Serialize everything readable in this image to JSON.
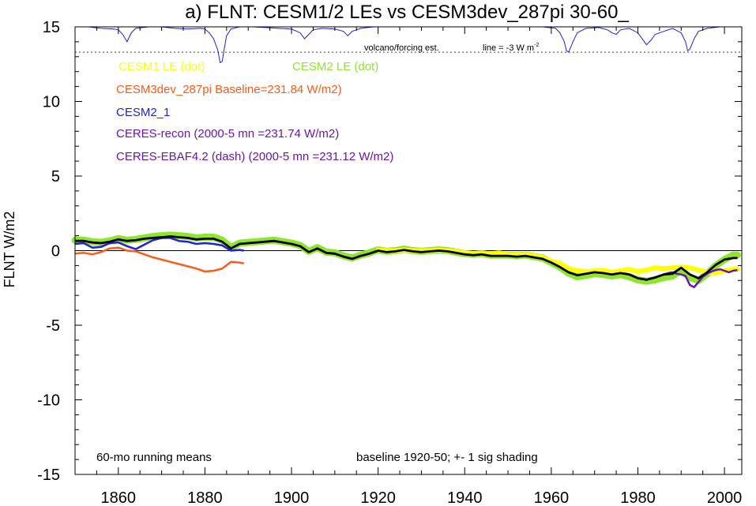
{
  "chart_data": {
    "type": "line",
    "title": "a) FLNT: CESM1/2 LEs vs CESM3dev_287pi 30-60_",
    "ylabel": "FLNT W/m2",
    "xlabel": "",
    "xlim": [
      1850,
      2004
    ],
    "ylim": [
      -15,
      15
    ],
    "x_ticks": [
      1860,
      1880,
      1900,
      1920,
      1940,
      1960,
      1980,
      2000
    ],
    "y_ticks": [
      -15,
      -10,
      -5,
      0,
      5,
      10,
      15
    ],
    "grid": false,
    "legend_placement": "top-left",
    "legend_entries": [
      {
        "label": "CESM1 LE (dot)",
        "color": "#ffff00"
      },
      {
        "label": "CESM2 LE (dot)",
        "color": "#8ee62c"
      },
      {
        "label": "CESM3dev_287pi Baseline=231.84 W/m2)",
        "color": "#ff5a14"
      },
      {
        "label": "CESM2_1",
        "color": "#1e1ee6"
      },
      {
        "label": "CERES-recon (2000-5 mn =231.74 W/m2)",
        "color": "#6a14b4"
      },
      {
        "label": "CERES-EBAF4.2 (dash) (2000-5 mn =231.12 W/m2)",
        "color": "#6a14b4"
      }
    ],
    "annotations": {
      "volcano": "volcano/forcing est.",
      "line": "line = -3 W m",
      "line_sup": "-2",
      "running": "60-mo running means",
      "baseline": "baseline 1920-50; +- 1 sig shading"
    },
    "volcano_reference_y": 13.3,
    "zero_line_y": 0,
    "series": [
      {
        "name": "CESM2 LE",
        "color": "#8ee62c",
        "x": [
          1850,
          1852,
          1854,
          1856,
          1858,
          1860,
          1862,
          1864,
          1866,
          1868,
          1870,
          1872,
          1874,
          1876,
          1878,
          1880,
          1882,
          1884,
          1886,
          1888,
          1890,
          1892,
          1894,
          1896,
          1898,
          1900,
          1902,
          1904,
          1906,
          1908,
          1910,
          1912,
          1914,
          1916,
          1918,
          1920,
          1922,
          1924,
          1926,
          1928,
          1930,
          1932,
          1934,
          1936,
          1938,
          1940,
          1942,
          1944,
          1946,
          1948,
          1950,
          1952,
          1954,
          1956,
          1958,
          1960,
          1962,
          1964,
          1966,
          1968,
          1970,
          1972,
          1974,
          1976,
          1978,
          1980,
          1982,
          1984,
          1986,
          1988,
          1990,
          1992,
          1994,
          1996,
          1998,
          2000,
          2002,
          2003
        ],
        "y": [
          0.7,
          0.7,
          0.6,
          0.55,
          0.65,
          0.8,
          0.7,
          0.75,
          0.85,
          0.95,
          1.0,
          1.05,
          1.0,
          0.95,
          0.85,
          0.9,
          0.9,
          0.7,
          0.2,
          0.5,
          0.55,
          0.6,
          0.65,
          0.7,
          0.6,
          0.5,
          0.35,
          -0.05,
          0.2,
          -0.1,
          -0.15,
          -0.35,
          -0.5,
          -0.3,
          -0.15,
          0.05,
          -0.05,
          0.0,
          0.1,
          0.0,
          -0.05,
          0.0,
          0.05,
          0.0,
          -0.1,
          -0.2,
          -0.25,
          -0.2,
          -0.3,
          -0.3,
          -0.3,
          -0.35,
          -0.3,
          -0.4,
          -0.5,
          -0.8,
          -1.1,
          -1.5,
          -1.75,
          -1.65,
          -1.55,
          -1.6,
          -1.7,
          -1.6,
          -1.75,
          -1.95,
          -2.05,
          -1.95,
          -1.8,
          -1.7,
          -1.3,
          -1.8,
          -2.0,
          -1.55,
          -1.0,
          -0.6,
          -0.3,
          -0.3
        ]
      },
      {
        "name": "CESM1 LE",
        "color": "#ffff00",
        "x": [
          1920,
          1922,
          1924,
          1926,
          1928,
          1930,
          1932,
          1934,
          1936,
          1938,
          1940,
          1942,
          1944,
          1946,
          1948,
          1950,
          1952,
          1954,
          1956,
          1958,
          1960,
          1962,
          1964,
          1966,
          1968,
          1970,
          1972,
          1974,
          1976,
          1978,
          1980,
          1982,
          1984,
          1986,
          1988,
          1990,
          1992,
          1994,
          1996,
          1998,
          2000,
          2002,
          2003
        ],
        "y": [
          0.05,
          0.0,
          0.0,
          0.05,
          0.0,
          0.0,
          0.0,
          0.05,
          0.0,
          -0.05,
          -0.15,
          -0.2,
          -0.2,
          -0.2,
          -0.15,
          -0.25,
          -0.3,
          -0.25,
          -0.35,
          -0.45,
          -0.7,
          -0.85,
          -1.2,
          -1.35,
          -1.4,
          -1.35,
          -1.3,
          -1.45,
          -1.35,
          -1.25,
          -1.4,
          -1.3,
          -1.15,
          -1.2,
          -1.15,
          -1.1,
          -1.15,
          -1.3,
          -1.45,
          -1.5,
          -1.35,
          -1.25,
          -1.25
        ]
      },
      {
        "name": "CESM3dev_287pi",
        "color": "#ff5a14",
        "x": [
          1850,
          1852,
          1854,
          1856,
          1858,
          1860,
          1862,
          1864,
          1866,
          1868,
          1870,
          1872,
          1874,
          1876,
          1878,
          1880,
          1882,
          1884,
          1886,
          1888,
          1889
        ],
        "y": [
          -0.2,
          -0.15,
          -0.25,
          -0.1,
          0.15,
          0.2,
          0.0,
          -0.05,
          -0.25,
          -0.45,
          -0.6,
          -0.75,
          -0.9,
          -1.05,
          -1.2,
          -1.4,
          -1.35,
          -1.2,
          -0.75,
          -0.8,
          -0.85
        ]
      },
      {
        "name": "CESM2_1",
        "color": "#1e1ee6",
        "x": [
          1850,
          1852,
          1854,
          1856,
          1858,
          1860,
          1862,
          1864,
          1866,
          1868,
          1870,
          1872,
          1874,
          1876,
          1878,
          1880,
          1882,
          1884,
          1886,
          1888,
          1889
        ],
        "y": [
          0.45,
          0.5,
          0.2,
          0.25,
          0.5,
          0.55,
          0.3,
          0.1,
          0.4,
          0.7,
          0.85,
          0.85,
          0.65,
          0.6,
          0.45,
          0.5,
          0.45,
          0.35,
          0.0,
          0.05,
          0.0
        ]
      },
      {
        "name": "CERES-recon",
        "color": "#6a14b4",
        "x": [
          1985,
          1986,
          1987,
          1988,
          1989,
          1990,
          1991,
          1992,
          1993,
          1994,
          1995,
          1996,
          1997,
          1998,
          1999,
          2000,
          2001,
          2002,
          2003
        ],
        "y": [
          -1.7,
          -1.6,
          -1.5,
          -1.45,
          -1.55,
          -1.6,
          -1.7,
          -2.3,
          -2.45,
          -2.1,
          -1.75,
          -1.55,
          -1.4,
          -1.3,
          -1.25,
          -1.35,
          -1.45,
          -1.35,
          -1.3
        ]
      },
      {
        "name": "CESM mean",
        "color": "#000000",
        "x": [
          1850,
          1852,
          1854,
          1856,
          1858,
          1860,
          1862,
          1864,
          1866,
          1868,
          1870,
          1872,
          1874,
          1876,
          1878,
          1880,
          1882,
          1884,
          1886,
          1888,
          1890,
          1892,
          1894,
          1896,
          1898,
          1900,
          1902,
          1904,
          1906,
          1908,
          1910,
          1912,
          1914,
          1916,
          1918,
          1920,
          1922,
          1924,
          1926,
          1928,
          1930,
          1932,
          1934,
          1936,
          1938,
          1940,
          1942,
          1944,
          1946,
          1948,
          1950,
          1952,
          1954,
          1956,
          1958,
          1960,
          1962,
          1964,
          1966,
          1968,
          1970,
          1972,
          1974,
          1976,
          1978,
          1980,
          1982,
          1984,
          1986,
          1988,
          1990,
          1992,
          1994,
          1996,
          1998,
          2000,
          2002,
          2003
        ],
        "y": [
          0.65,
          0.65,
          0.55,
          0.5,
          0.6,
          0.75,
          0.65,
          0.7,
          0.8,
          0.85,
          0.9,
          0.95,
          0.9,
          0.85,
          0.75,
          0.8,
          0.8,
          0.6,
          0.15,
          0.45,
          0.5,
          0.55,
          0.6,
          0.65,
          0.55,
          0.45,
          0.3,
          -0.1,
          0.15,
          -0.15,
          -0.2,
          -0.4,
          -0.55,
          -0.35,
          -0.2,
          0.0,
          -0.1,
          -0.05,
          0.05,
          -0.05,
          -0.1,
          -0.05,
          0.0,
          -0.05,
          -0.15,
          -0.25,
          -0.3,
          -0.25,
          -0.35,
          -0.35,
          -0.35,
          -0.4,
          -0.35,
          -0.45,
          -0.55,
          -0.8,
          -1.1,
          -1.45,
          -1.65,
          -1.55,
          -1.45,
          -1.5,
          -1.6,
          -1.5,
          -1.6,
          -1.85,
          -1.95,
          -1.8,
          -1.6,
          -1.55,
          -1.15,
          -1.6,
          -1.85,
          -1.45,
          -0.95,
          -0.6,
          -0.5,
          -0.5
        ]
      }
    ],
    "volcano_series": {
      "color": "#1e1ee6",
      "x": [
        1850,
        1853,
        1856,
        1859,
        1860,
        1861,
        1862,
        1863,
        1864,
        1867,
        1870,
        1873,
        1876,
        1879,
        1880,
        1881,
        1882,
        1883,
        1883.5,
        1884,
        1884.5,
        1885,
        1886,
        1888,
        1891,
        1894,
        1897,
        1900,
        1902,
        1903,
        1904,
        1905,
        1907,
        1910,
        1912,
        1913,
        1914,
        1916,
        1919,
        1922,
        1925,
        1928,
        1931,
        1934,
        1937,
        1940,
        1943,
        1946,
        1949,
        1952,
        1955,
        1958,
        1961,
        1962,
        1963,
        1963.5,
        1964,
        1965,
        1966,
        1968,
        1971,
        1973,
        1974,
        1975,
        1976,
        1978,
        1980,
        1981,
        1982,
        1983,
        1984,
        1986,
        1988,
        1990,
        1991,
        1991.5,
        1992,
        1993,
        1994,
        1996,
        1999,
        2002,
        2003
      ],
      "y": [
        15,
        15,
        14.9,
        14.85,
        14.8,
        14.5,
        14.0,
        14.6,
        14.9,
        15,
        15,
        14.9,
        14.85,
        14.9,
        14.85,
        14.6,
        14.2,
        13.4,
        12.6,
        12.7,
        13.6,
        14.4,
        14.85,
        15,
        15,
        14.95,
        14.9,
        14.85,
        14.6,
        14.2,
        14.5,
        14.8,
        14.9,
        14.85,
        14.7,
        14.4,
        14.7,
        14.9,
        15,
        15,
        15,
        15,
        15,
        15,
        15,
        15,
        15,
        15,
        15,
        15,
        15,
        15,
        14.9,
        14.6,
        14.0,
        13.4,
        13.3,
        14.0,
        14.6,
        14.9,
        14.95,
        14.8,
        14.6,
        14.5,
        14.8,
        14.9,
        14.6,
        14.2,
        13.8,
        14.1,
        14.5,
        14.7,
        14.9,
        14.6,
        14.0,
        13.4,
        13.5,
        14.2,
        14.7,
        14.9,
        15,
        15,
        15
      ]
    }
  }
}
